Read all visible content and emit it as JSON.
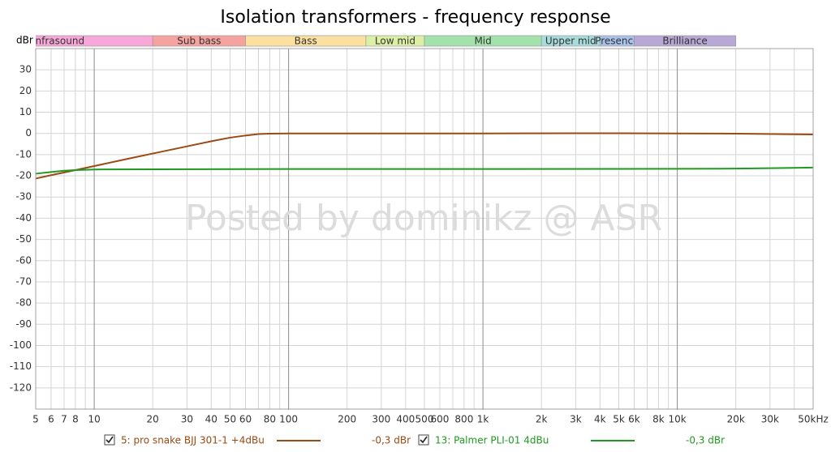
{
  "chart_data": {
    "type": "line",
    "title": "Isolation transformers - frequency response",
    "y_label": "dBr",
    "watermark": "Posted by dominikz @ ASR",
    "x_scale": "log",
    "grid": true,
    "xlim": [
      5,
      50000
    ],
    "ylim": [
      -130,
      40
    ],
    "yticks": [
      30,
      20,
      10,
      0,
      -10,
      -20,
      -30,
      -40,
      -50,
      -60,
      -70,
      -80,
      -90,
      -100,
      -110,
      -120
    ],
    "xticks": [
      5,
      6,
      7,
      8,
      {
        "value": 9,
        "label": null
      },
      10,
      20,
      30,
      40,
      50,
      60,
      {
        "value": 70,
        "label": null
      },
      80,
      {
        "value": 90,
        "label": null
      },
      100,
      200,
      300,
      400,
      500,
      600,
      {
        "value": 700,
        "label": null
      },
      800,
      {
        "value": 900,
        "label": null
      },
      {
        "value": 1000,
        "label": "1k"
      },
      {
        "value": 2000,
        "label": "2k"
      },
      {
        "value": 3000,
        "label": "3k"
      },
      {
        "value": 4000,
        "label": "4k"
      },
      {
        "value": 5000,
        "label": "5k"
      },
      {
        "value": 6000,
        "label": "6k"
      },
      {
        "value": 7000,
        "label": null
      },
      {
        "value": 8000,
        "label": "8k"
      },
      {
        "value": 9000,
        "label": null
      },
      {
        "value": 10000,
        "label": "10k"
      },
      {
        "value": 20000,
        "label": "20k"
      },
      {
        "value": 30000,
        "label": "30k"
      },
      {
        "value": 40000,
        "label": null
      },
      {
        "value": 50000,
        "label": "50kHz"
      }
    ],
    "major_xticks": [
      10,
      100,
      1000,
      10000
    ],
    "bands": [
      {
        "name": "Infrasound",
        "range": [
          5,
          20
        ],
        "color": "#f7a8d8"
      },
      {
        "name": "Sub bass",
        "range": [
          20,
          60
        ],
        "color": "#f4a3a0"
      },
      {
        "name": "Bass",
        "range": [
          60,
          250
        ],
        "color": "#fbe0a0"
      },
      {
        "name": "Low mid",
        "range": [
          250,
          500
        ],
        "color": "#dcefa4"
      },
      {
        "name": "Mid",
        "range": [
          500,
          2000
        ],
        "color": "#a4e2ac"
      },
      {
        "name": "Upper mid",
        "range": [
          2000,
          4000
        ],
        "color": "#a8dcdc"
      },
      {
        "name": "Presence",
        "range": [
          4000,
          6000
        ],
        "color": "#aac2ea"
      },
      {
        "name": "Brilliance",
        "range": [
          6000,
          20000
        ],
        "color": "#b8a8d6"
      }
    ],
    "series": [
      {
        "name": "5: pro snake BJJ 301-1 +4dBu",
        "color": "#9a4a12",
        "level": "-0,3 dBr",
        "x": [
          5,
          6,
          8,
          10,
          15,
          20,
          30,
          40,
          50,
          60,
          70,
          80,
          100,
          1000,
          3000,
          10000,
          20000,
          50000
        ],
        "values": [
          -21.3,
          -19.7,
          -17.3,
          -15.4,
          -11.9,
          -9.5,
          -6.1,
          -3.7,
          -2.0,
          -1.0,
          -0.3,
          -0.1,
          0,
          0,
          0.1,
          0,
          -0.1,
          -0.5
        ]
      },
      {
        "name": "13: Palmer PLI-01 4dBu",
        "color": "#1f9a1f",
        "level": "-0,3 dBr",
        "x": [
          5,
          6,
          7,
          8,
          10,
          20,
          100,
          1000,
          10000,
          20000,
          30000,
          50000
        ],
        "values": [
          -19,
          -18.2,
          -17.6,
          -17.3,
          -17.0,
          -16.9,
          -16.8,
          -16.8,
          -16.7,
          -16.6,
          -16.4,
          -16.1
        ]
      }
    ]
  }
}
